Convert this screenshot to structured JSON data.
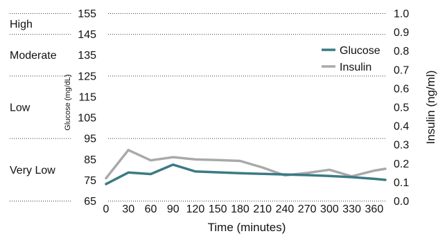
{
  "chart_data": {
    "type": "line",
    "xlabel": "Time (minutes)",
    "ylabel_left": "Glucose (mg/dL)",
    "ylabel_right": "Insulin (ng/ml)",
    "x": [
      0,
      30,
      60,
      90,
      120,
      150,
      180,
      210,
      240,
      270,
      300,
      330,
      360
    ],
    "x_ticks": [
      "0",
      "30",
      "60",
      "90",
      "120",
      "150",
      "180",
      "210",
      "240",
      "270",
      "300",
      "330",
      "360"
    ],
    "x_range": [
      0,
      375
    ],
    "ylim_left": [
      65,
      155
    ],
    "yticks_left": [
      "155",
      "145",
      "135",
      "125",
      "115",
      "105",
      "95",
      "85",
      "75",
      "65"
    ],
    "ylim_right": [
      0.0,
      1.0
    ],
    "yticks_right": [
      "1.0",
      "0.9",
      "0.8",
      "0.7",
      "0.6",
      "0.5",
      "0.4",
      "0.3",
      "0.2",
      "0.1",
      "0.0"
    ],
    "grid": "dotted horizontal lines at the category band boundaries",
    "legend_position": "top-right",
    "glucose_categories": [
      {
        "label": "High",
        "range": [
          145,
          155
        ]
      },
      {
        "label": "Moderate",
        "range": [
          125,
          145
        ]
      },
      {
        "label": "Low",
        "range": [
          95,
          125
        ]
      },
      {
        "label": "Very Low",
        "range": [
          65,
          95
        ]
      }
    ],
    "series": [
      {
        "name": "Glucose",
        "axis": "left",
        "color": "#3a7a84",
        "x": [
          0,
          30,
          60,
          90,
          120,
          150,
          180,
          210,
          240,
          270,
          300,
          330,
          360,
          375
        ],
        "values": [
          73,
          78.5,
          77.8,
          82.3,
          79,
          78.6,
          78.2,
          77.9,
          77.6,
          77.3,
          76.9,
          76.3,
          75.5,
          75
        ]
      },
      {
        "name": "Insulin",
        "axis": "right",
        "color": "#a9a9a9",
        "x": [
          0,
          30,
          60,
          90,
          120,
          150,
          180,
          210,
          240,
          270,
          300,
          330,
          360,
          375
        ],
        "values": [
          0.12,
          0.27,
          0.215,
          0.232,
          0.22,
          0.217,
          0.212,
          0.177,
          0.135,
          0.148,
          0.165,
          0.13,
          0.16,
          0.17
        ]
      }
    ]
  }
}
